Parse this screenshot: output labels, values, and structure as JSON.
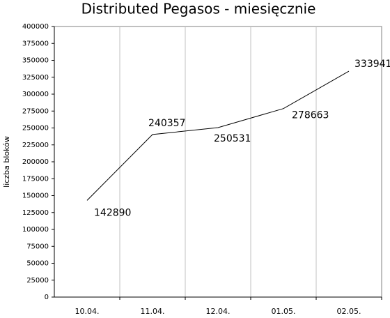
{
  "chart_data": {
    "type": "line",
    "title": "Distributed Pegasos - miesięcznie",
    "y_label": "liczba bloków",
    "categories": [
      "10.04.",
      "11.04.",
      "12.04.",
      "01.05.",
      "02.05."
    ],
    "values": [
      142890,
      240357,
      250531,
      278663,
      333941
    ],
    "color": "#000000",
    "ylim": [
      0,
      400000
    ],
    "yticks": [
      0,
      25000,
      50000,
      75000,
      100000,
      125000,
      150000,
      175000,
      200000,
      225000,
      250000,
      275000,
      300000,
      325000,
      350000,
      375000,
      400000
    ],
    "grid": true
  }
}
